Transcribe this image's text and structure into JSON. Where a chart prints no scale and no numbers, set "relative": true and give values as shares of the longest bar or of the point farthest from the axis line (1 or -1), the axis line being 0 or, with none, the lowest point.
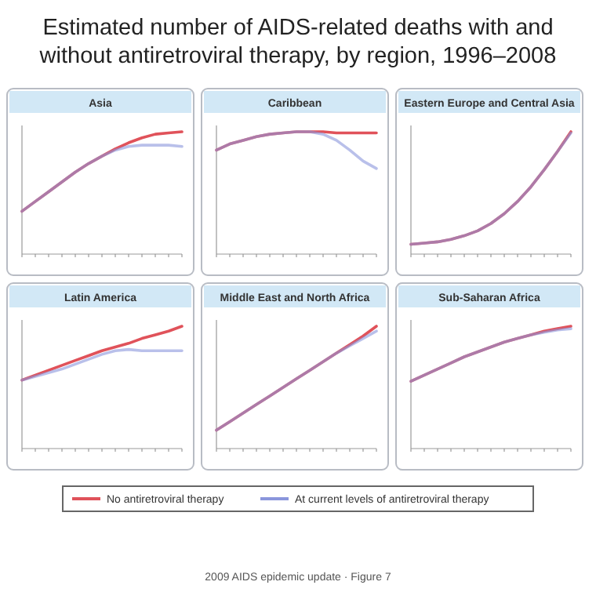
{
  "chart_data": [
    {
      "type": "other",
      "title": "Estimated number of AIDS-related deaths with and without antiretroviral therapy, by region, 1996–2008",
      "annotations": [
        "2009 AIDS epidemic update · Figure 7"
      ]
    },
    {
      "type": "line",
      "title": "Asia",
      "relative": true,
      "legend": "bottom",
      "categories": [
        null,
        null,
        null,
        null,
        null,
        null,
        null,
        null,
        null,
        null,
        null,
        null,
        null
      ],
      "series": [
        {
          "name": "No antiretroviral therapy",
          "color": "#e0525a",
          "values": [
            0.35,
            0.43,
            0.51,
            0.59,
            0.67,
            0.74,
            0.8,
            0.86,
            0.91,
            0.95,
            0.98,
            0.99,
            1.0
          ]
        },
        {
          "name": "At current levels of antiretroviral therapy",
          "color": "#8a96dc",
          "values": [
            0.35,
            0.43,
            0.51,
            0.59,
            0.67,
            0.74,
            0.8,
            0.85,
            0.88,
            0.89,
            0.89,
            0.89,
            0.88
          ]
        }
      ]
    },
    {
      "type": "line",
      "title": "Caribbean",
      "relative": true,
      "categories": [
        null,
        null,
        null,
        null,
        null,
        null,
        null,
        null,
        null,
        null,
        null,
        null,
        null
      ],
      "series": [
        {
          "color": "#e0525a",
          "values": [
            0.85,
            0.9,
            0.93,
            0.96,
            0.98,
            0.99,
            1.0,
            1.0,
            1.0,
            0.99,
            0.99,
            0.99,
            0.99
          ]
        },
        {
          "color": "#8a96dc",
          "values": [
            0.85,
            0.9,
            0.93,
            0.96,
            0.98,
            0.99,
            1.0,
            1.0,
            0.98,
            0.93,
            0.85,
            0.76,
            0.7
          ]
        }
      ]
    },
    {
      "type": "line",
      "title": "Eastern Europe and Central Asia",
      "relative": true,
      "categories": [
        null,
        null,
        null,
        null,
        null,
        null,
        null,
        null,
        null,
        null,
        null,
        null,
        null
      ],
      "series": [
        {
          "color": "#e0525a",
          "values": [
            0.08,
            0.09,
            0.1,
            0.12,
            0.15,
            0.19,
            0.25,
            0.33,
            0.43,
            0.55,
            0.69,
            0.84,
            1.0
          ]
        },
        {
          "color": "#8a96dc",
          "values": [
            0.08,
            0.09,
            0.1,
            0.12,
            0.15,
            0.19,
            0.25,
            0.33,
            0.43,
            0.55,
            0.69,
            0.84,
            0.99
          ]
        }
      ]
    },
    {
      "type": "line",
      "title": "Latin America",
      "relative": true,
      "categories": [
        null,
        null,
        null,
        null,
        null,
        null,
        null,
        null,
        null,
        null,
        null,
        null,
        null
      ],
      "series": [
        {
          "color": "#e0525a",
          "values": [
            0.56,
            0.6,
            0.64,
            0.68,
            0.72,
            0.76,
            0.8,
            0.83,
            0.86,
            0.9,
            0.93,
            0.96,
            1.0
          ]
        },
        {
          "color": "#8a96dc",
          "values": [
            0.56,
            0.59,
            0.62,
            0.65,
            0.69,
            0.73,
            0.77,
            0.8,
            0.81,
            0.8,
            0.8,
            0.8,
            0.8
          ]
        }
      ]
    },
    {
      "type": "line",
      "title": "Middle East and North Africa",
      "relative": true,
      "categories": [
        null,
        null,
        null,
        null,
        null,
        null,
        null,
        null,
        null,
        null,
        null,
        null,
        null
      ],
      "series": [
        {
          "color": "#e0525a",
          "values": [
            0.15,
            0.22,
            0.29,
            0.36,
            0.43,
            0.5,
            0.57,
            0.64,
            0.71,
            0.78,
            0.85,
            0.92,
            1.0
          ]
        },
        {
          "color": "#8a96dc",
          "values": [
            0.15,
            0.22,
            0.29,
            0.36,
            0.43,
            0.5,
            0.57,
            0.64,
            0.71,
            0.78,
            0.84,
            0.9,
            0.96
          ]
        }
      ]
    },
    {
      "type": "line",
      "title": "Sub-Saharan Africa",
      "relative": true,
      "categories": [
        null,
        null,
        null,
        null,
        null,
        null,
        null,
        null,
        null,
        null,
        null,
        null,
        null
      ],
      "series": [
        {
          "color": "#e0525a",
          "values": [
            0.55,
            0.6,
            0.65,
            0.7,
            0.75,
            0.79,
            0.83,
            0.87,
            0.9,
            0.93,
            0.96,
            0.98,
            1.0
          ]
        },
        {
          "color": "#8a96dc",
          "values": [
            0.55,
            0.6,
            0.65,
            0.7,
            0.75,
            0.79,
            0.83,
            0.87,
            0.9,
            0.93,
            0.95,
            0.97,
            0.98
          ]
        }
      ]
    }
  ]
}
